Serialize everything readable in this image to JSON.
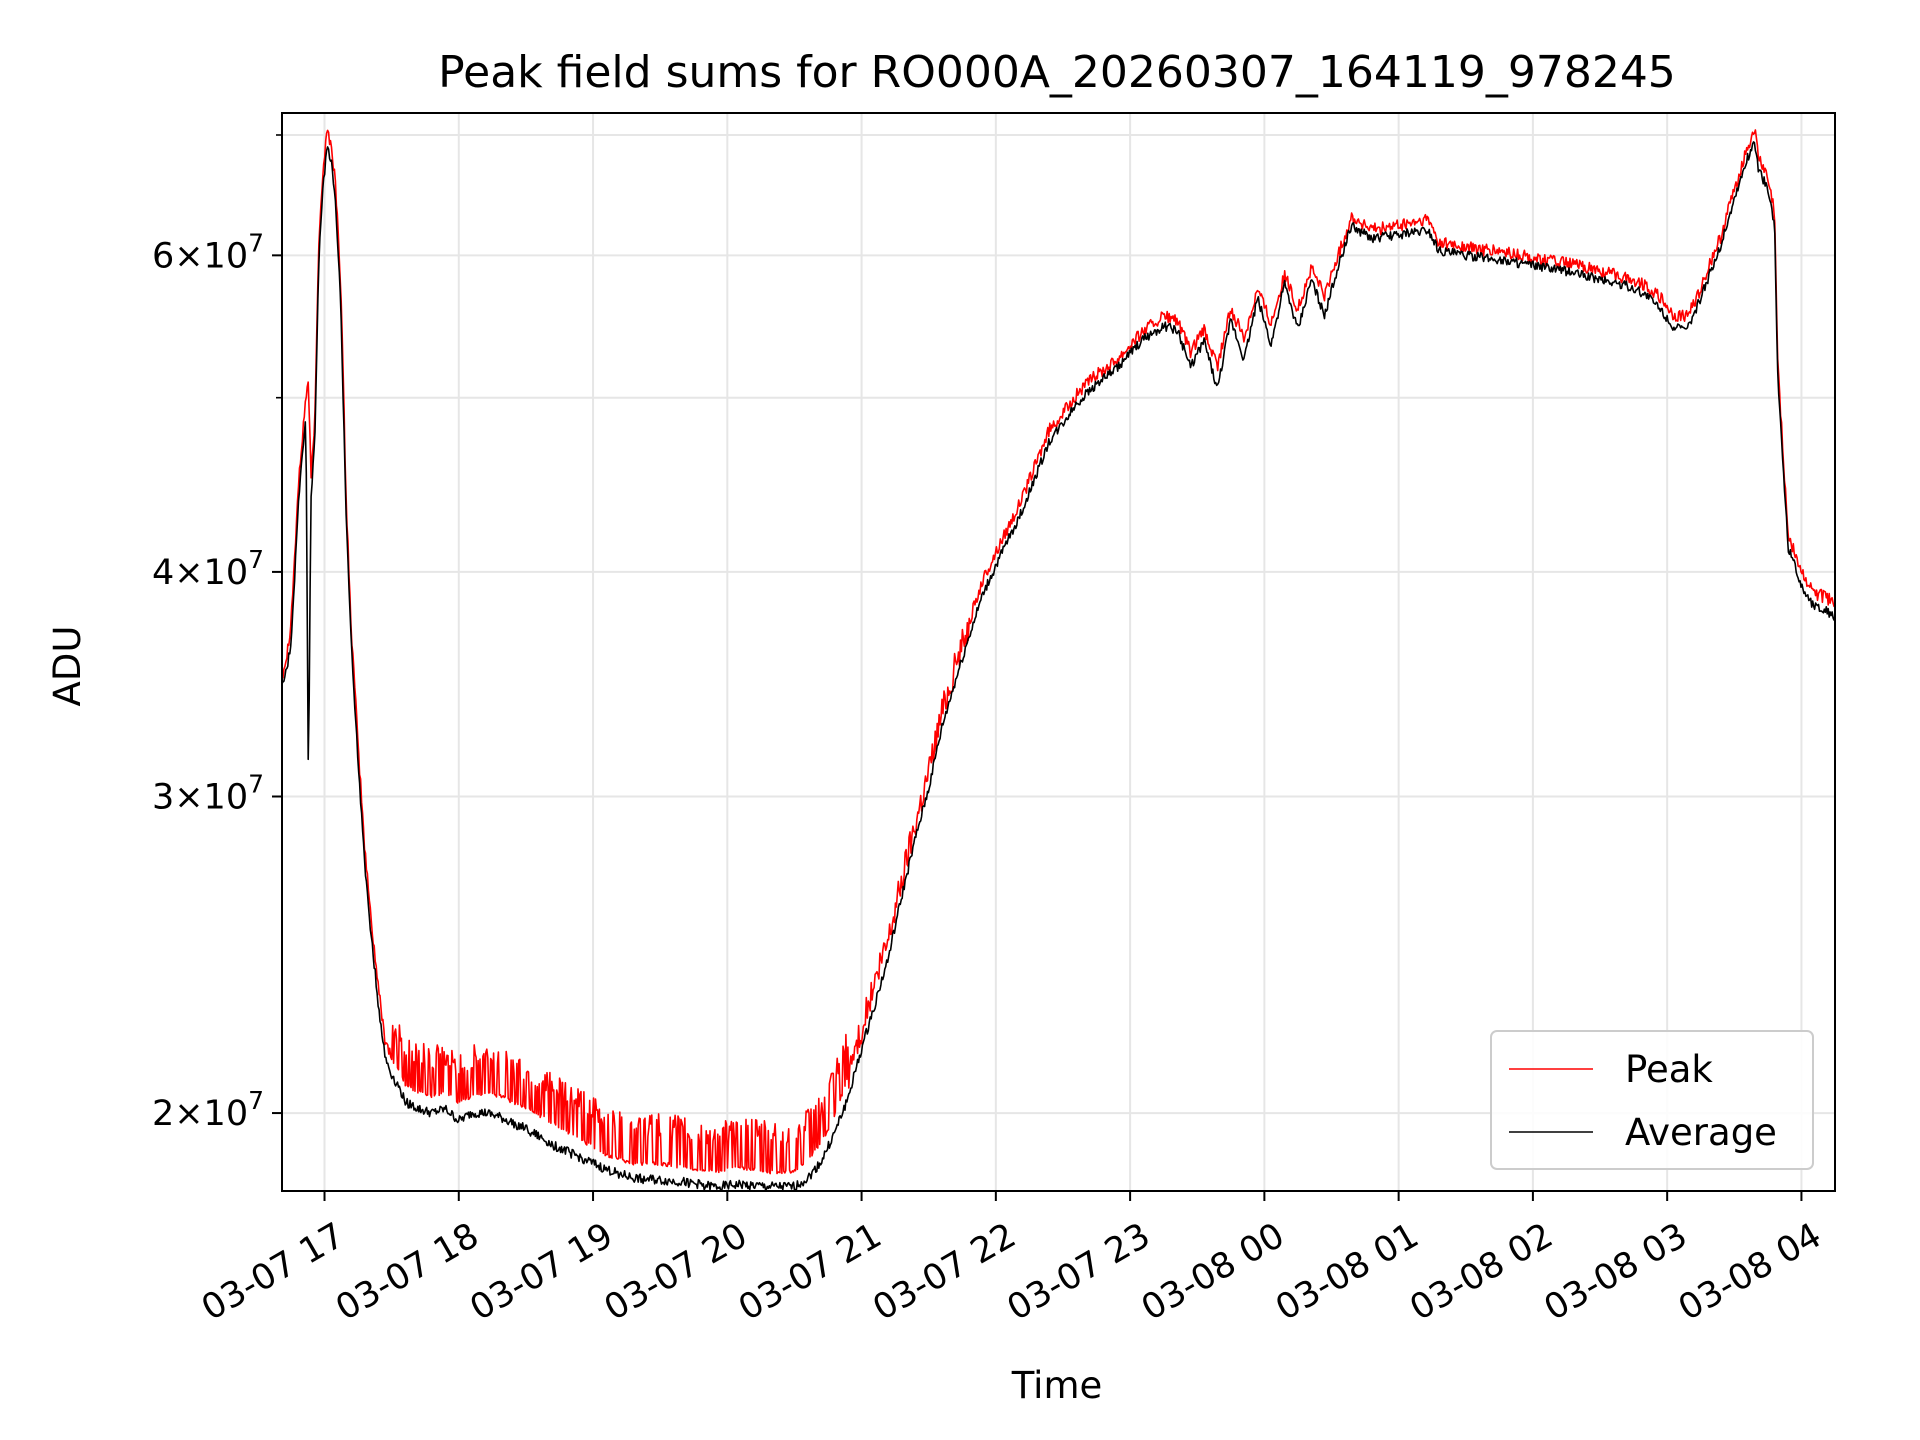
{
  "chart_data": {
    "type": "line",
    "title": "Peak field sums for RO000A_20260307_164119_978245",
    "xlabel": "Time",
    "ylabel": "ADU",
    "x_axis": {
      "range": [
        "03-07 16:41",
        "03-08 04:15"
      ],
      "ticks": [
        {
          "label": "03-07 17",
          "h": 17
        },
        {
          "label": "03-07 18",
          "h": 18
        },
        {
          "label": "03-07 19",
          "h": 19
        },
        {
          "label": "03-07 20",
          "h": 20
        },
        {
          "label": "03-07 21",
          "h": 21
        },
        {
          "label": "03-07 22",
          "h": 22
        },
        {
          "label": "03-07 23",
          "h": 23
        },
        {
          "label": "03-08 00",
          "h": 24
        },
        {
          "label": "03-08 01",
          "h": 25
        },
        {
          "label": "03-08 02",
          "h": 26
        },
        {
          "label": "03-08 03",
          "h": 27
        },
        {
          "label": "03-08 04",
          "h": 28
        }
      ]
    },
    "y_axis": {
      "scale": "log",
      "range": [
        18100000,
        72000000
      ],
      "ticks": [
        {
          "value": 20000000,
          "mant": "2",
          "exp": "7"
        },
        {
          "value": 30000000,
          "mant": "3",
          "exp": "7"
        },
        {
          "value": 40000000,
          "mant": "4",
          "exp": "7"
        },
        {
          "value": 60000000,
          "mant": "6",
          "exp": "7"
        }
      ],
      "minor_ticks": [
        50000000,
        70000000
      ]
    },
    "grid": true,
    "legend_position": "lower-right",
    "series": [
      {
        "name": "Peak",
        "color": "#ff0000",
        "points": [
          [
            16.683,
            35000000.0
          ],
          [
            16.72,
            36000000.0
          ],
          [
            16.75,
            37500000.0
          ],
          [
            16.78,
            41000000.0
          ],
          [
            16.8,
            44000000.0
          ],
          [
            16.83,
            47000000.0
          ],
          [
            16.86,
            50000000.0
          ],
          [
            16.88,
            51000000.0
          ],
          [
            16.9,
            45000000.0
          ],
          [
            16.93,
            49000000.0
          ],
          [
            16.96,
            62000000.0
          ],
          [
            16.99,
            67000000.0
          ],
          [
            17.02,
            70500000.0
          ],
          [
            17.05,
            69000000.0
          ],
          [
            17.08,
            66000000.0
          ],
          [
            17.12,
            58000000.0
          ],
          [
            17.16,
            44000000.0
          ],
          [
            17.2,
            37000000.0
          ],
          [
            17.25,
            32000000.0
          ],
          [
            17.3,
            28000000.0
          ],
          [
            17.35,
            25500000.0
          ],
          [
            17.4,
            23500000.0
          ],
          [
            17.45,
            22000000.0
          ],
          [
            17.5,
            21500000.0
          ],
          [
            17.55,
            21200000.0
          ],
          [
            17.6,
            20800000.0
          ],
          [
            17.7,
            20600000.0
          ],
          [
            17.8,
            20500000.0
          ],
          [
            17.9,
            20600000.0
          ],
          [
            18.0,
            20300000.0
          ],
          [
            18.1,
            20500000.0
          ],
          [
            18.2,
            20600000.0
          ],
          [
            18.3,
            20500000.0
          ],
          [
            18.5,
            20200000.0
          ],
          [
            18.7,
            19800000.0
          ],
          [
            18.9,
            19400000.0
          ],
          [
            19.1,
            19000000.0
          ],
          [
            19.3,
            18800000.0
          ],
          [
            19.5,
            18800000.0
          ],
          [
            19.7,
            18700000.0
          ],
          [
            19.9,
            18600000.0
          ],
          [
            20.1,
            18700000.0
          ],
          [
            20.3,
            18600000.0
          ],
          [
            20.5,
            18600000.0
          ],
          [
            20.6,
            18900000.0
          ],
          [
            20.7,
            19300000.0
          ],
          [
            20.8,
            20000000.0
          ],
          [
            20.9,
            21000000.0
          ],
          [
            21.0,
            22300000.0
          ],
          [
            21.1,
            23600000.0
          ],
          [
            21.2,
            25000000.0
          ],
          [
            21.3,
            27000000.0
          ],
          [
            21.4,
            29000000.0
          ],
          [
            21.5,
            31000000.0
          ],
          [
            21.6,
            33500000.0
          ],
          [
            21.7,
            35500000.0
          ],
          [
            21.8,
            37500000.0
          ],
          [
            21.9,
            39500000.0
          ],
          [
            22.0,
            41000000.0
          ],
          [
            22.1,
            42500000.0
          ],
          [
            22.2,
            44000000.0
          ],
          [
            22.3,
            46000000.0
          ],
          [
            22.4,
            48000000.0
          ],
          [
            22.5,
            49000000.0
          ],
          [
            22.6,
            50200000.0
          ],
          [
            22.75,
            51500000.0
          ],
          [
            22.9,
            52500000.0
          ],
          [
            23.0,
            53500000.0
          ],
          [
            23.1,
            54500000.0
          ],
          [
            23.25,
            55500000.0
          ],
          [
            23.35,
            55200000.0
          ],
          [
            23.45,
            53000000.0
          ],
          [
            23.55,
            54500000.0
          ],
          [
            23.65,
            52000000.0
          ],
          [
            23.75,
            56000000.0
          ],
          [
            23.85,
            54000000.0
          ],
          [
            23.95,
            57500000.0
          ],
          [
            24.05,
            55000000.0
          ],
          [
            24.15,
            58500000.0
          ],
          [
            24.25,
            56000000.0
          ],
          [
            24.35,
            59000000.0
          ],
          [
            24.45,
            57000000.0
          ],
          [
            24.55,
            60000000.0
          ],
          [
            24.65,
            63000000.0
          ],
          [
            24.8,
            62000000.0
          ],
          [
            25.0,
            62300000.0
          ],
          [
            25.22,
            62800000.0
          ],
          [
            25.3,
            61000000.0
          ],
          [
            25.5,
            60600000.0
          ],
          [
            25.8,
            60200000.0
          ],
          [
            26.0,
            59800000.0
          ],
          [
            26.3,
            59300000.0
          ],
          [
            26.5,
            58800000.0
          ],
          [
            26.7,
            58300000.0
          ],
          [
            26.85,
            57700000.0
          ],
          [
            26.95,
            56800000.0
          ],
          [
            27.05,
            55500000.0
          ],
          [
            27.15,
            55500000.0
          ],
          [
            27.25,
            57500000.0
          ],
          [
            27.4,
            61500000.0
          ],
          [
            27.52,
            66000000.0
          ],
          [
            27.6,
            69000000.0
          ],
          [
            27.65,
            70500000.0
          ],
          [
            27.68,
            68000000.0
          ],
          [
            27.74,
            66500000.0
          ],
          [
            27.8,
            63500000.0
          ],
          [
            27.82,
            53000000.0
          ],
          [
            27.86,
            47000000.0
          ],
          [
            27.9,
            42000000.0
          ],
          [
            27.95,
            41000000.0
          ],
          [
            28.0,
            40000000.0
          ],
          [
            28.08,
            39000000.0
          ],
          [
            28.25,
            38500000.0
          ]
        ]
      },
      {
        "name": "Average",
        "color": "#000000",
        "points": [
          [
            16.683,
            34500000.0
          ],
          [
            16.72,
            35300000.0
          ],
          [
            16.75,
            36500000.0
          ],
          [
            16.78,
            40000000.0
          ],
          [
            16.8,
            43000000.0
          ],
          [
            16.83,
            46000000.0
          ],
          [
            16.86,
            49000000.0
          ],
          [
            16.88,
            30000000.0
          ],
          [
            16.9,
            44000000.0
          ],
          [
            16.93,
            48000000.0
          ],
          [
            16.96,
            60500000.0
          ],
          [
            16.99,
            65500000.0
          ],
          [
            17.02,
            69000000.0
          ],
          [
            17.05,
            67800000.0
          ],
          [
            17.08,
            64500000.0
          ],
          [
            17.12,
            56500000.0
          ],
          [
            17.16,
            43000000.0
          ],
          [
            17.2,
            36300000.0
          ],
          [
            17.25,
            31300000.0
          ],
          [
            17.3,
            27500000.0
          ],
          [
            17.35,
            25000000.0
          ],
          [
            17.4,
            23000000.0
          ],
          [
            17.45,
            21500000.0
          ],
          [
            17.5,
            21000000.0
          ],
          [
            17.55,
            20700000.0
          ],
          [
            17.6,
            20300000.0
          ],
          [
            17.7,
            20100000.0
          ],
          [
            17.8,
            20000000.0
          ],
          [
            17.9,
            20100000.0
          ],
          [
            18.0,
            19800000.0
          ],
          [
            18.1,
            20000000.0
          ],
          [
            18.2,
            20000000.0
          ],
          [
            18.3,
            19900000.0
          ],
          [
            18.5,
            19600000.0
          ],
          [
            18.7,
            19200000.0
          ],
          [
            18.9,
            18900000.0
          ],
          [
            19.1,
            18600000.0
          ],
          [
            19.3,
            18400000.0
          ],
          [
            19.5,
            18350000.0
          ],
          [
            19.7,
            18300000.0
          ],
          [
            19.9,
            18200000.0
          ],
          [
            20.1,
            18250000.0
          ],
          [
            20.3,
            18200000.0
          ],
          [
            20.5,
            18200000.0
          ],
          [
            20.6,
            18400000.0
          ],
          [
            20.7,
            18800000.0
          ],
          [
            20.8,
            19500000.0
          ],
          [
            20.9,
            20400000.0
          ],
          [
            21.0,
            21700000.0
          ],
          [
            21.1,
            23000000.0
          ],
          [
            21.2,
            24400000.0
          ],
          [
            21.3,
            26400000.0
          ],
          [
            21.4,
            28400000.0
          ],
          [
            21.5,
            30300000.0
          ],
          [
            21.6,
            32800000.0
          ],
          [
            21.7,
            34800000.0
          ],
          [
            21.8,
            36800000.0
          ],
          [
            21.9,
            38800000.0
          ],
          [
            22.0,
            40300000.0
          ],
          [
            22.1,
            41800000.0
          ],
          [
            22.2,
            43300000.0
          ],
          [
            22.3,
            45300000.0
          ],
          [
            22.4,
            47300000.0
          ],
          [
            22.5,
            48400000.0
          ],
          [
            22.6,
            49600000.0
          ],
          [
            22.75,
            50900000.0
          ],
          [
            22.9,
            51900000.0
          ],
          [
            23.0,
            52900000.0
          ],
          [
            23.1,
            53900000.0
          ],
          [
            23.25,
            54800000.0
          ],
          [
            23.35,
            54500000.0
          ],
          [
            23.45,
            52000000.0
          ],
          [
            23.55,
            53800000.0
          ],
          [
            23.65,
            50500000.0
          ],
          [
            23.75,
            55200000.0
          ],
          [
            23.85,
            52500000.0
          ],
          [
            23.95,
            56800000.0
          ],
          [
            24.05,
            53500000.0
          ],
          [
            24.15,
            57800000.0
          ],
          [
            24.25,
            54500000.0
          ],
          [
            24.35,
            58200000.0
          ],
          [
            24.45,
            55500000.0
          ],
          [
            24.55,
            59200000.0
          ],
          [
            24.65,
            62300000.0
          ],
          [
            24.8,
            61300000.0
          ],
          [
            25.0,
            61600000.0
          ],
          [
            25.22,
            62000000.0
          ],
          [
            25.3,
            60400000.0
          ],
          [
            25.5,
            60000000.0
          ],
          [
            25.8,
            59600000.0
          ],
          [
            26.0,
            59200000.0
          ],
          [
            26.3,
            58700000.0
          ],
          [
            26.5,
            58200000.0
          ],
          [
            26.7,
            57700000.0
          ],
          [
            26.85,
            57000000.0
          ],
          [
            26.95,
            56000000.0
          ],
          [
            27.05,
            54700000.0
          ],
          [
            27.15,
            54500000.0
          ],
          [
            27.25,
            56800000.0
          ],
          [
            27.4,
            60800000.0
          ],
          [
            27.52,
            65200000.0
          ],
          [
            27.6,
            68000000.0
          ],
          [
            27.65,
            69500000.0
          ],
          [
            27.68,
            67000000.0
          ],
          [
            27.74,
            65500000.0
          ],
          [
            27.8,
            62500000.0
          ],
          [
            27.82,
            52000000.0
          ],
          [
            27.86,
            46200000.0
          ],
          [
            27.9,
            41300000.0
          ],
          [
            27.95,
            40300000.0
          ],
          [
            28.0,
            39300000.0
          ],
          [
            28.08,
            38400000.0
          ],
          [
            28.25,
            37800000.0
          ]
        ]
      }
    ]
  }
}
